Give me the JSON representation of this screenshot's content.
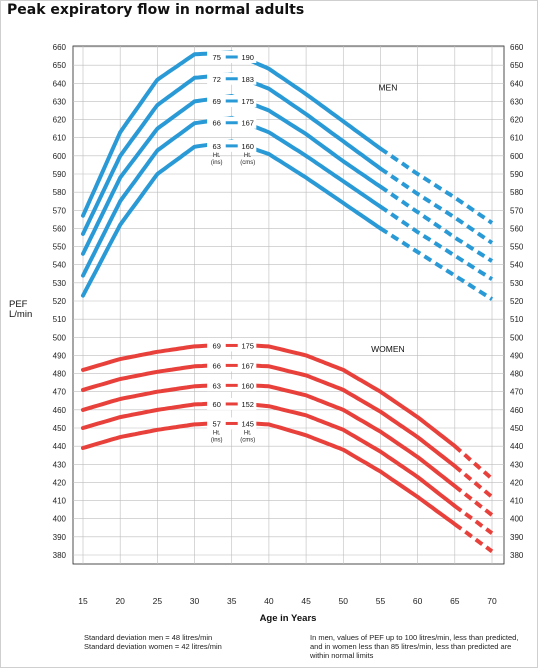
{
  "title": "Peak expiratory flow in normal adults",
  "chart_data": {
    "type": "line",
    "title": "Peak expiratory flow in normal adults",
    "xlabel": "Age in Years",
    "ylabel": "PEF\nL/min",
    "xlim": [
      15,
      70
    ],
    "ylim": [
      380,
      660
    ],
    "x_ticks": [
      15,
      20,
      25,
      30,
      35,
      40,
      45,
      50,
      55,
      60,
      65,
      70
    ],
    "y_ticks": [
      380,
      390,
      400,
      410,
      420,
      430,
      440,
      450,
      460,
      470,
      480,
      490,
      500,
      510,
      520,
      530,
      540,
      550,
      560,
      570,
      580,
      590,
      600,
      610,
      620,
      630,
      640,
      650,
      660
    ],
    "grid": true,
    "groups": [
      {
        "name": "MEN",
        "color": "#2a9ad6",
        "dashed_from_age": 55,
        "height_unit_left": "Ht.\n(ins)",
        "height_unit_right": "Ht.\n(cms)",
        "series": [
          {
            "ht_in": "75",
            "ht_cm": "190",
            "x": [
              15,
              20,
              25,
              30,
              35,
              40,
              45,
              50,
              55,
              60,
              65,
              70
            ],
            "y": [
              567,
              613,
              642,
              656,
              657,
              648,
              634,
              619,
              604,
              590,
              577,
              563
            ]
          },
          {
            "ht_in": "72",
            "ht_cm": "183",
            "x": [
              15,
              20,
              25,
              30,
              35,
              40,
              45,
              50,
              55,
              60,
              65,
              70
            ],
            "y": [
              557,
              600,
              628,
              643,
              645,
              637,
              623,
              608,
              593,
              579,
              566,
              552
            ]
          },
          {
            "ht_in": "69",
            "ht_cm": "175",
            "x": [
              15,
              20,
              25,
              30,
              35,
              40,
              45,
              50,
              55,
              60,
              65,
              70
            ],
            "y": [
              546,
              588,
              615,
              630,
              633,
              625,
              612,
              597,
              583,
              569,
              555,
              542
            ]
          },
          {
            "ht_in": "66",
            "ht_cm": "167",
            "x": [
              15,
              20,
              25,
              30,
              35,
              40,
              45,
              50,
              55,
              60,
              65,
              70
            ],
            "y": [
              534,
              575,
              603,
              618,
              621,
              613,
              600,
              586,
              572,
              558,
              545,
              532
            ]
          },
          {
            "ht_in": "63",
            "ht_cm": "160",
            "x": [
              15,
              20,
              25,
              30,
              35,
              40,
              45,
              50,
              55,
              60,
              65,
              70
            ],
            "y": [
              523,
              562,
              590,
              605,
              608,
              601,
              588,
              574,
              560,
              547,
              534,
              521
            ]
          }
        ]
      },
      {
        "name": "WOMEN",
        "color": "#e8413c",
        "dashed_from_age": 65,
        "height_unit_left": "Ht.\n(ins)",
        "height_unit_right": "Ht.\n(cms)",
        "series": [
          {
            "ht_in": "69",
            "ht_cm": "175",
            "x": [
              15,
              20,
              25,
              30,
              35,
              40,
              45,
              50,
              55,
              60,
              65,
              70
            ],
            "y": [
              482,
              488,
              492,
              495,
              496,
              495,
              490,
              482,
              470,
              456,
              440,
              422
            ]
          },
          {
            "ht_in": "66",
            "ht_cm": "167",
            "x": [
              15,
              20,
              25,
              30,
              35,
              40,
              45,
              50,
              55,
              60,
              65,
              70
            ],
            "y": [
              471,
              477,
              481,
              484,
              485,
              484,
              479,
              471,
              459,
              445,
              429,
              412
            ]
          },
          {
            "ht_in": "63",
            "ht_cm": "160",
            "x": [
              15,
              20,
              25,
              30,
              35,
              40,
              45,
              50,
              55,
              60,
              65,
              70
            ],
            "y": [
              460,
              466,
              470,
              473,
              474,
              473,
              468,
              460,
              448,
              434,
              418,
              402
            ]
          },
          {
            "ht_in": "60",
            "ht_cm": "152",
            "x": [
              15,
              20,
              25,
              30,
              35,
              40,
              45,
              50,
              55,
              60,
              65,
              70
            ],
            "y": [
              450,
              456,
              460,
              463,
              464,
              462,
              457,
              449,
              437,
              423,
              407,
              392
            ]
          },
          {
            "ht_in": "57",
            "ht_cm": "145",
            "x": [
              15,
              20,
              25,
              30,
              35,
              40,
              45,
              50,
              55,
              60,
              65,
              70
            ],
            "y": [
              439,
              445,
              449,
              452,
              453,
              452,
              446,
              438,
              426,
              412,
              397,
              382
            ]
          }
        ]
      }
    ]
  },
  "footnotes": {
    "sd_men": "Standard deviation men = 48 litres/min",
    "sd_women": "Standard deviation women = 42 litres/min",
    "note": "In men, values of PEF up to 100 litres/min, less than predicted, and in women less than 85 litres/min, less than predicted are within normal limits"
  }
}
